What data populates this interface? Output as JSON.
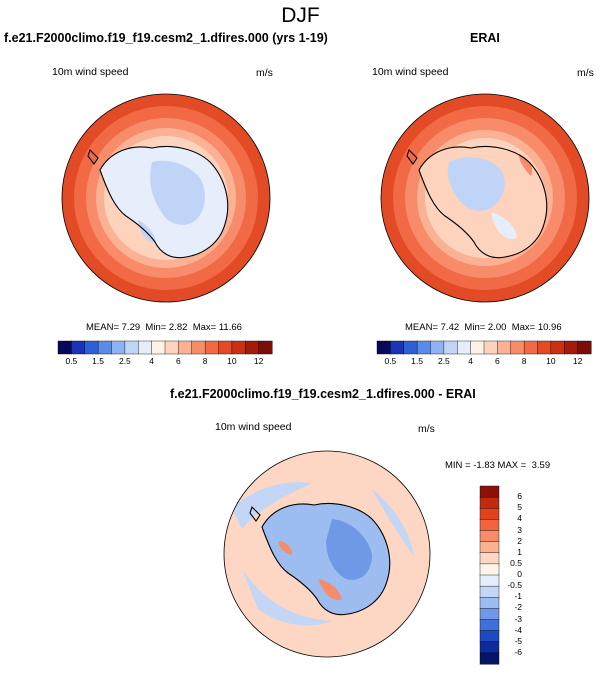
{
  "title": "DJF",
  "panels": [
    {
      "title": "f.e21.F2000climo.f19_f19.cesm2_1.dfires.000 (yrs 1-19)",
      "variable": "10m wind speed",
      "units": "m/s",
      "stats": {
        "mean_label": "MEAN=",
        "mean": "7.29",
        "min_label": "Min=",
        "min": "2.82",
        "max_label": "Max=",
        "max": "11.66"
      }
    },
    {
      "title": "ERAI",
      "variable": "10m wind speed",
      "units": "m/s",
      "stats": {
        "mean_label": "MEAN=",
        "mean": "7.42",
        "min_label": "Min=",
        "min": "2.00",
        "max_label": "Max=",
        "max": "10.96"
      }
    },
    {
      "title": "f.e21.F2000climo.f19_f19.cesm2_1.dfires.000 - ERAI",
      "variable": "10m wind speed",
      "units": "m/s",
      "stats": {
        "min_label": "MIN =",
        "min": "-1.83",
        "max_label": "MAX =",
        "max": "3.59"
      }
    }
  ],
  "colorbar_horizontal": {
    "tick_labels": [
      "0.5",
      "1.5",
      "2.5",
      "4",
      "6",
      "8",
      "10",
      "12"
    ],
    "colors": [
      "#08085a",
      "#1a34b8",
      "#2f5fd6",
      "#5a8be8",
      "#8fb3f0",
      "#bfd4f7",
      "#e6eefb",
      "#fff1e6",
      "#fdd3bd",
      "#fbb194",
      "#f78b6a",
      "#f16a45",
      "#e34a26",
      "#c93114",
      "#a31b0b",
      "#7a0d05"
    ]
  },
  "colorbar_vertical": {
    "tick_labels": [
      "6",
      "5",
      "4",
      "3",
      "2",
      "1",
      "0.5",
      "0",
      "-0.5",
      "-1",
      "-2",
      "-3",
      "-4",
      "-5",
      "-6"
    ],
    "colors": [
      "#8e1108",
      "#c02a10",
      "#e0411f",
      "#f26440",
      "#f78b6a",
      "#fab292",
      "#fdd7c3",
      "#fff3ea",
      "#e7eefb",
      "#c4d6f6",
      "#9dbcf0",
      "#6f98e6",
      "#3f6fd9",
      "#1f49c0",
      "#0f2a9a",
      "#08146a"
    ]
  },
  "map_colors": {
    "ocean_strong": "#e34a26",
    "ocean_mid": "#f78b6a",
    "ocean_light": "#fbb194",
    "ocean_pale": "#fdd3bd",
    "ice_pale": "#e6eefb",
    "ice_blue": "#bfd4f7",
    "diff_ocean": "#fdd7c3",
    "diff_land": "#9dbcf0",
    "diff_pos": "#f78b6a",
    "coastline": "#000000"
  }
}
